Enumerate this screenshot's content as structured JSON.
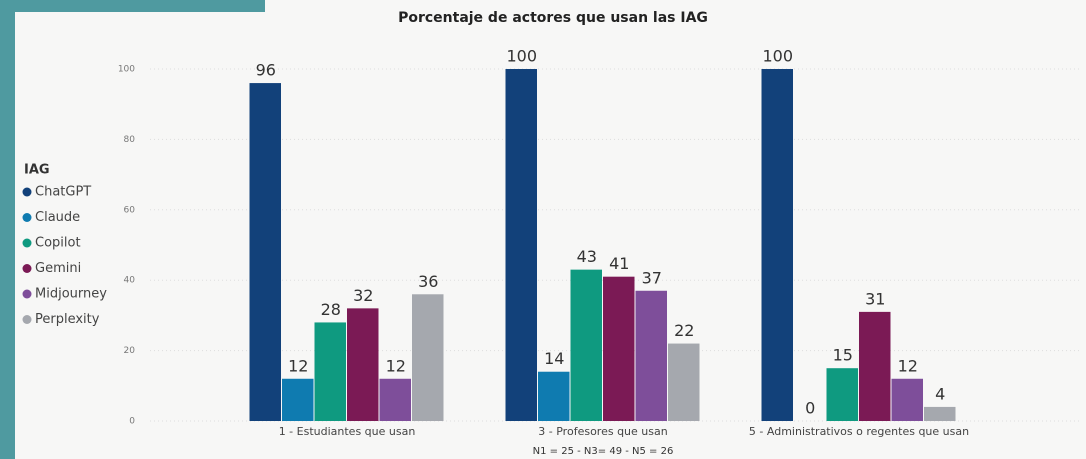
{
  "chart_data": {
    "type": "bar",
    "title": "Porcentaje de actores que usan las IAG",
    "x_label": "N1 = 25 - N3= 49 - N5 = 26",
    "legend_title": "IAG",
    "legend": "left",
    "grid": true,
    "categories": [
      "1 - Estudiantes que usan",
      "3 - Profesores que usan",
      "5 - Administrativos o regentes que usan"
    ],
    "series": [
      {
        "name": "ChatGPT",
        "color": "#12417a",
        "values": [
          96,
          100,
          100
        ]
      },
      {
        "name": "Claude",
        "color": "#0f7bb0",
        "values": [
          12,
          14,
          0
        ]
      },
      {
        "name": "Copilot",
        "color": "#0f9a80",
        "values": [
          28,
          43,
          15
        ]
      },
      {
        "name": "Gemini",
        "color": "#7b1a55",
        "values": [
          32,
          41,
          31
        ]
      },
      {
        "name": "Midjourney",
        "color": "#7e4e9a",
        "values": [
          12,
          37,
          12
        ]
      },
      {
        "name": "Perplexity",
        "color": "#a5a8ae",
        "values": [
          36,
          22,
          4
        ]
      }
    ],
    "ylim": [
      0,
      100
    ],
    "yticks": [
      0,
      20,
      40,
      60,
      80,
      100
    ]
  }
}
